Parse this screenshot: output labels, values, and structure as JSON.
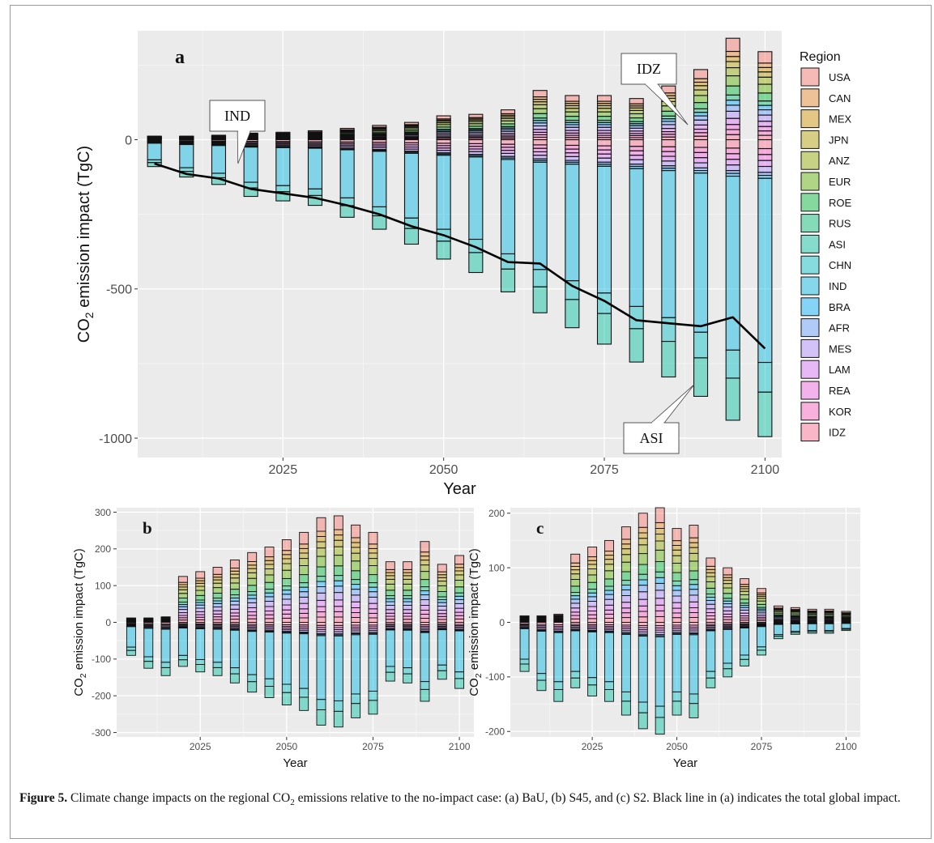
{
  "caption": {
    "label": "Figure 5.",
    "text": "Climate change impacts on the regional CO2 emissions relative to the no-impact case: (a) BaU, (b) S45, and (c) S2. Black line in (a) indicates the total global impact."
  },
  "legend": {
    "title": "Region",
    "items": [
      {
        "name": "USA",
        "color": "#F8766D"
      },
      {
        "name": "CAN",
        "color": "#E88526"
      },
      {
        "name": "MEX",
        "color": "#D39200"
      },
      {
        "name": "JPN",
        "color": "#B79F00"
      },
      {
        "name": "ANZ",
        "color": "#93AA00"
      },
      {
        "name": "EUR",
        "color": "#5EB300"
      },
      {
        "name": "ROE",
        "color": "#00BA38"
      },
      {
        "name": "RUS",
        "color": "#00BF74"
      },
      {
        "name": "ASI",
        "color": "#00C19F"
      },
      {
        "name": "CHN",
        "color": "#00BFC4"
      },
      {
        "name": "IND",
        "color": "#00B9E3"
      },
      {
        "name": "BRA",
        "color": "#00ADFA"
      },
      {
        "name": "AFR",
        "color": "#619CFF"
      },
      {
        "name": "MES",
        "color": "#AE87FF"
      },
      {
        "name": "LAM",
        "color": "#DB72FB"
      },
      {
        "name": "REA",
        "color": "#F564E3"
      },
      {
        "name": "KOR",
        "color": "#FF61C3"
      },
      {
        "name": "IDZ",
        "color": "#FF6C91"
      }
    ]
  },
  "chart_data": [
    {
      "panel_label": "a",
      "type": "bar",
      "stacked": true,
      "xlabel": "Year",
      "ylabel": "CO2 emission impact (TgC)",
      "xlim": [
        2005,
        2100
      ],
      "ylim": [
        -1000,
        300
      ],
      "xticks": [
        2025,
        2050,
        2075,
        2100
      ],
      "yticks": [
        -1000,
        -500,
        0
      ],
      "years": [
        2005,
        2010,
        2015,
        2020,
        2025,
        2030,
        2035,
        2040,
        2045,
        2050,
        2055,
        2060,
        2065,
        2070,
        2075,
        2080,
        2085,
        2090,
        2095,
        2100
      ],
      "pos_total": [
        12,
        12,
        15,
        22,
        25,
        30,
        38,
        48,
        58,
        80,
        85,
        100,
        165,
        148,
        148,
        138,
        180,
        235,
        340,
        295
      ],
      "neg_total": [
        -90,
        -125,
        -150,
        -190,
        -205,
        -220,
        -260,
        -300,
        -350,
        -400,
        -445,
        -510,
        -580,
        -630,
        -685,
        -745,
        -795,
        -860,
        -940,
        -995
      ],
      "total_line": {
        "name": "Total global impact",
        "values": [
          -80,
          -115,
          -130,
          -165,
          -180,
          -195,
          -220,
          -250,
          -290,
          -320,
          -360,
          -410,
          -415,
          -490,
          -540,
          -605,
          -615,
          -625,
          -595,
          -700
        ]
      },
      "annotations": [
        {
          "text": "IND",
          "year": 2018,
          "value": -80
        },
        {
          "text": "IDZ",
          "year": 2088,
          "value": 50
        },
        {
          "text": "ASI",
          "year": 2089,
          "value": -820
        }
      ]
    },
    {
      "panel_label": "b",
      "type": "bar",
      "stacked": true,
      "xlabel": "Year",
      "ylabel": "CO2 emission impact (TgC)",
      "xlim": [
        2005,
        2100
      ],
      "ylim": [
        -300,
        300
      ],
      "xticks": [
        2025,
        2050,
        2075,
        2100
      ],
      "yticks": [
        -300,
        -200,
        -100,
        0,
        100,
        200,
        300
      ],
      "years": [
        2005,
        2010,
        2015,
        2020,
        2025,
        2030,
        2035,
        2040,
        2045,
        2050,
        2055,
        2060,
        2065,
        2070,
        2075,
        2080,
        2085,
        2090,
        2095,
        2100
      ],
      "pos_total": [
        12,
        12,
        15,
        125,
        138,
        150,
        170,
        190,
        205,
        225,
        245,
        285,
        290,
        265,
        245,
        165,
        165,
        220,
        158,
        182
      ],
      "neg_total": [
        -90,
        -125,
        -145,
        -120,
        -135,
        -145,
        -165,
        -190,
        -205,
        -225,
        -240,
        -280,
        -285,
        -260,
        -250,
        -160,
        -165,
        -215,
        -155,
        -180
      ]
    },
    {
      "panel_label": "c",
      "type": "bar",
      "stacked": true,
      "xlabel": "Year",
      "ylabel": "CO2 emission impact (TgC)",
      "xlim": [
        2005,
        2100
      ],
      "ylim": [
        -200,
        200
      ],
      "xticks": [
        2025,
        2050,
        2075,
        2100
      ],
      "yticks": [
        -200,
        -100,
        0,
        100,
        200
      ],
      "years": [
        2005,
        2010,
        2015,
        2020,
        2025,
        2030,
        2035,
        2040,
        2045,
        2050,
        2055,
        2060,
        2065,
        2070,
        2075,
        2080,
        2085,
        2090,
        2095,
        2100
      ],
      "pos_total": [
        12,
        12,
        15,
        125,
        138,
        150,
        175,
        200,
        210,
        172,
        178,
        118,
        100,
        80,
        62,
        30,
        27,
        24,
        24,
        20
      ],
      "neg_total": [
        -90,
        -125,
        -145,
        -120,
        -135,
        -145,
        -170,
        -195,
        -205,
        -170,
        -175,
        -120,
        -100,
        -80,
        -60,
        -30,
        -22,
        -20,
        -20,
        -15
      ]
    }
  ]
}
